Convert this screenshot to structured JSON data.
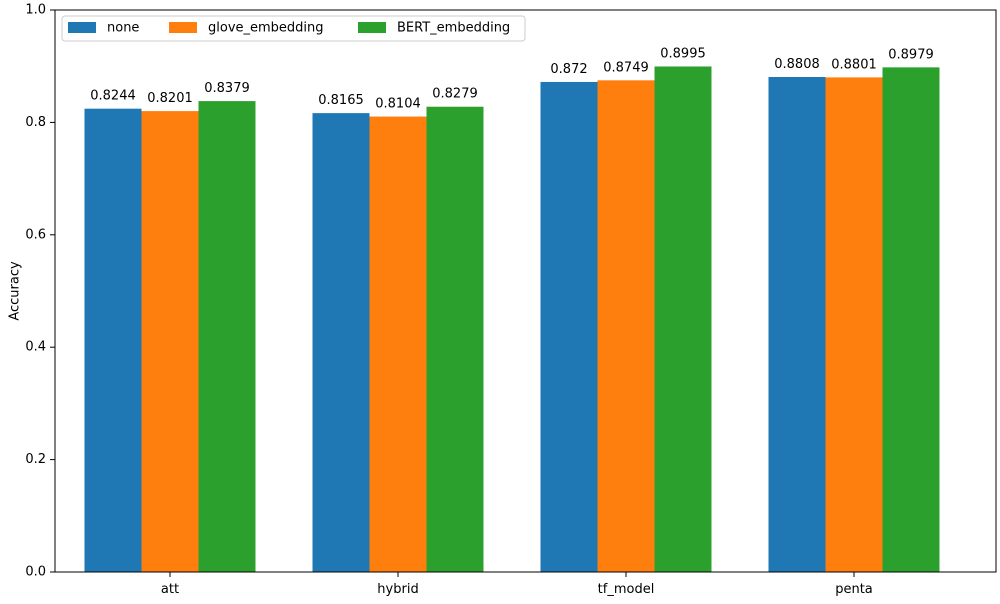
{
  "chart_data": {
    "type": "bar",
    "title": "",
    "xlabel": "",
    "ylabel": "Accuracy",
    "ylim": [
      0,
      1.0
    ],
    "yticks": [
      "0.0",
      "0.2",
      "0.4",
      "0.6",
      "0.8",
      "1.0"
    ],
    "categories": [
      "att",
      "hybrid",
      "tf_model",
      "penta"
    ],
    "series": [
      {
        "name": "none",
        "color": "#1f77b4",
        "values": [
          0.8244,
          0.8165,
          0.872,
          0.8808
        ],
        "labels": [
          "0.8244",
          "0.8165",
          "0.872",
          "0.8808"
        ]
      },
      {
        "name": "glove_embedding",
        "color": "#ff7f0e",
        "values": [
          0.8201,
          0.8104,
          0.8749,
          0.8801
        ],
        "labels": [
          "0.8201",
          "0.8104",
          "0.8749",
          "0.8801"
        ]
      },
      {
        "name": "BERT_embedding",
        "color": "#2ca02c",
        "values": [
          0.8379,
          0.8279,
          0.8995,
          0.8979
        ],
        "labels": [
          "0.8379",
          "0.8279",
          "0.8995",
          "0.8979"
        ]
      }
    ],
    "legend": {
      "position": "top-left",
      "columns": 3
    },
    "grid": false
  }
}
